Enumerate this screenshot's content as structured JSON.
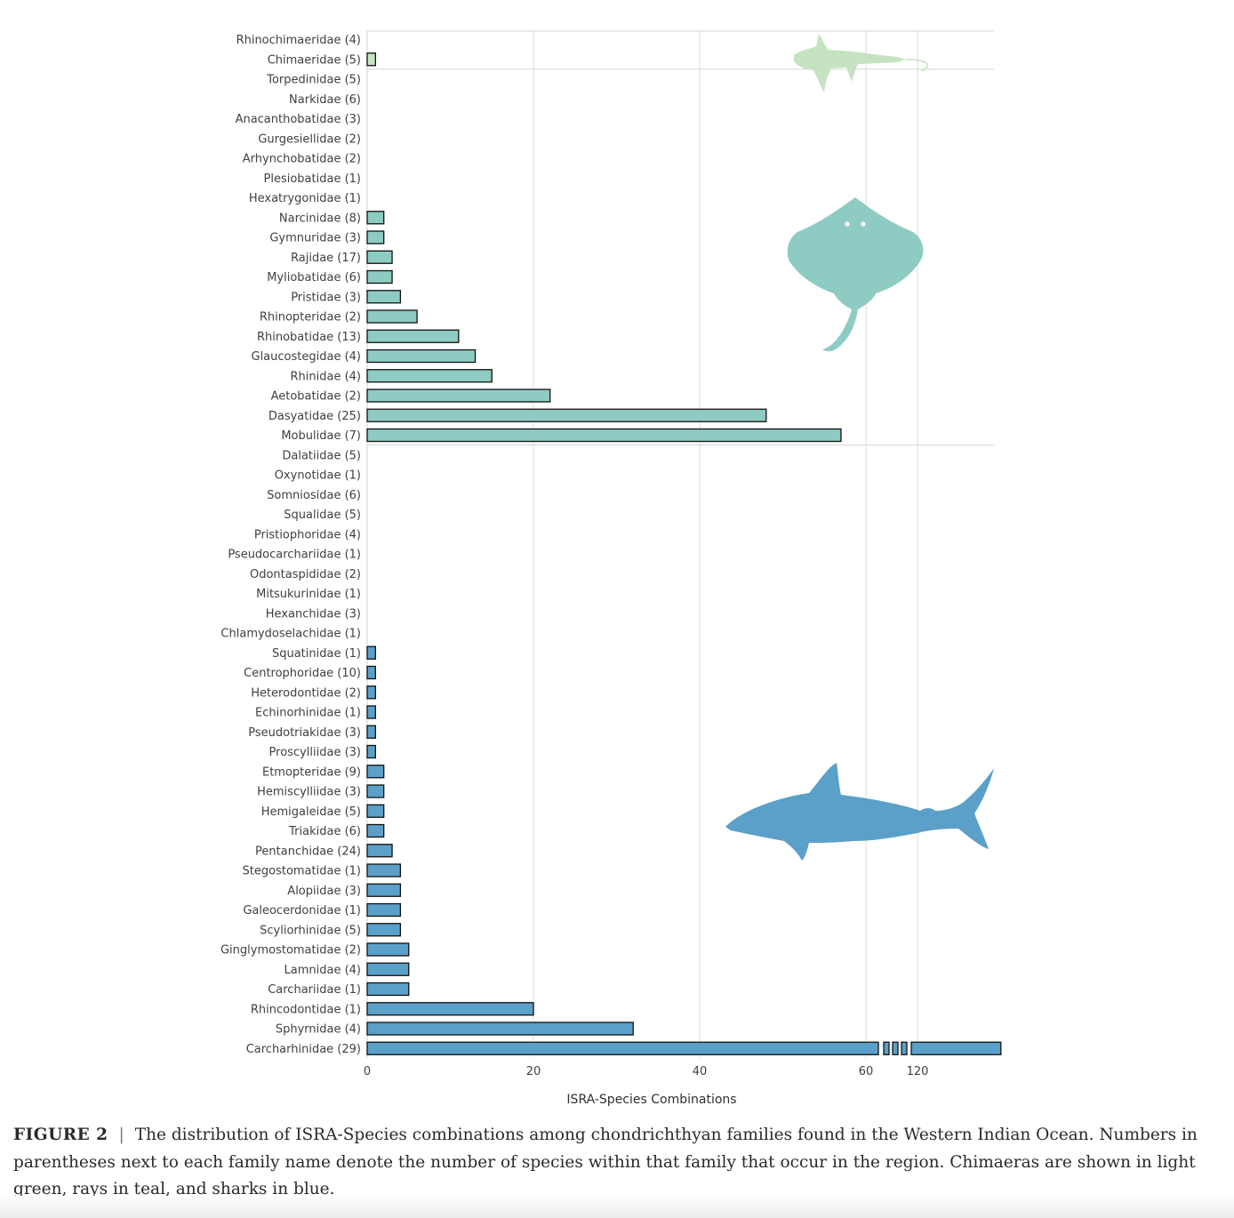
{
  "chart_data": {
    "type": "bar",
    "orientation": "horizontal",
    "xlabel": "ISRA-Species Combinations",
    "x_ticks": [
      "0",
      "20",
      "40",
      "60",
      "120"
    ],
    "x_axis_break": {
      "after": 60,
      "resume": 120
    },
    "grid": true,
    "colors": {
      "Chimaeras": "#c5e3c1",
      "Rays": "#8ecbc2",
      "Sharks": "#5ba0c8"
    },
    "categories": [
      {
        "name": "Rhinochimaeridae (4)",
        "group": "Chimaeras",
        "value": 0
      },
      {
        "name": "Chimaeridae (5)",
        "group": "Chimaeras",
        "value": 1
      },
      {
        "name": "Torpedinidae (5)",
        "group": "Rays",
        "value": 0
      },
      {
        "name": "Narkidae (6)",
        "group": "Rays",
        "value": 0
      },
      {
        "name": "Anacanthobatidae (3)",
        "group": "Rays",
        "value": 0
      },
      {
        "name": "Gurgesiellidae (2)",
        "group": "Rays",
        "value": 0
      },
      {
        "name": "Arhynchobatidae (2)",
        "group": "Rays",
        "value": 0
      },
      {
        "name": "Plesiobatidae (1)",
        "group": "Rays",
        "value": 0
      },
      {
        "name": "Hexatrygonidae (1)",
        "group": "Rays",
        "value": 0
      },
      {
        "name": "Narcinidae (8)",
        "group": "Rays",
        "value": 2
      },
      {
        "name": "Gymnuridae (3)",
        "group": "Rays",
        "value": 2
      },
      {
        "name": "Rajidae (17)",
        "group": "Rays",
        "value": 3
      },
      {
        "name": "Myliobatidae (6)",
        "group": "Rays",
        "value": 3
      },
      {
        "name": "Pristidae (3)",
        "group": "Rays",
        "value": 4
      },
      {
        "name": "Rhinopteridae (2)",
        "group": "Rays",
        "value": 6
      },
      {
        "name": "Rhinobatidae (13)",
        "group": "Rays",
        "value": 11
      },
      {
        "name": "Glaucostegidae (4)",
        "group": "Rays",
        "value": 13
      },
      {
        "name": "Rhinidae (4)",
        "group": "Rays",
        "value": 15
      },
      {
        "name": "Aetobatidae (2)",
        "group": "Rays",
        "value": 22
      },
      {
        "name": "Dasyatidae (25)",
        "group": "Rays",
        "value": 48
      },
      {
        "name": "Mobulidae (7)",
        "group": "Rays",
        "value": 57
      },
      {
        "name": "Dalatiidae (5)",
        "group": "Sharks",
        "value": 0
      },
      {
        "name": "Oxynotidae (1)",
        "group": "Sharks",
        "value": 0
      },
      {
        "name": "Somniosidae (6)",
        "group": "Sharks",
        "value": 0
      },
      {
        "name": "Squalidae (5)",
        "group": "Sharks",
        "value": 0
      },
      {
        "name": "Pristiophoridae (4)",
        "group": "Sharks",
        "value": 0
      },
      {
        "name": "Pseudocarchariidae (1)",
        "group": "Sharks",
        "value": 0
      },
      {
        "name": "Odontaspididae (2)",
        "group": "Sharks",
        "value": 0
      },
      {
        "name": "Mitsukurinidae (1)",
        "group": "Sharks",
        "value": 0
      },
      {
        "name": "Hexanchidae (3)",
        "group": "Sharks",
        "value": 0
      },
      {
        "name": "Chlamydoselachidae (1)",
        "group": "Sharks",
        "value": 0
      },
      {
        "name": "Squatinidae (1)",
        "group": "Sharks",
        "value": 1
      },
      {
        "name": "Centrophoridae (10)",
        "group": "Sharks",
        "value": 1
      },
      {
        "name": "Heterodontidae (2)",
        "group": "Sharks",
        "value": 1
      },
      {
        "name": "Echinorhinidae (1)",
        "group": "Sharks",
        "value": 1
      },
      {
        "name": "Pseudotriakidae (3)",
        "group": "Sharks",
        "value": 1
      },
      {
        "name": "Proscylliidae (3)",
        "group": "Sharks",
        "value": 1
      },
      {
        "name": "Etmopteridae (9)",
        "group": "Sharks",
        "value": 2
      },
      {
        "name": "Hemiscylliidae (3)",
        "group": "Sharks",
        "value": 2
      },
      {
        "name": "Hemigaleidae (5)",
        "group": "Sharks",
        "value": 2
      },
      {
        "name": "Triakidae (6)",
        "group": "Sharks",
        "value": 2
      },
      {
        "name": "Pentanchidae (24)",
        "group": "Sharks",
        "value": 3
      },
      {
        "name": "Stegostomatidae (1)",
        "group": "Sharks",
        "value": 4
      },
      {
        "name": "Alopiidae (3)",
        "group": "Sharks",
        "value": 4
      },
      {
        "name": "Galeocerdonidae (1)",
        "group": "Sharks",
        "value": 4
      },
      {
        "name": "Scyliorhinidae (5)",
        "group": "Sharks",
        "value": 4
      },
      {
        "name": "Ginglymostomatidae (2)",
        "group": "Sharks",
        "value": 5
      },
      {
        "name": "Lamnidae (4)",
        "group": "Sharks",
        "value": 5
      },
      {
        "name": "Carchariidae (1)",
        "group": "Sharks",
        "value": 5
      },
      {
        "name": "Rhincodontidae (1)",
        "group": "Sharks",
        "value": 20
      },
      {
        "name": "Sphyrnidae (4)",
        "group": "Sharks",
        "value": 32
      },
      {
        "name": "Carcharhinidae (29)",
        "group": "Sharks",
        "value": 132
      }
    ]
  },
  "caption": {
    "label": "FIGURE 2",
    "separator": "|",
    "text": "The distribution of ISRA-Species combinations among chondrichthyan families found in the Western Indian Ocean. Numbers in parentheses next to each family name denote the number of species within that family that occur in the region. Chimaeras are shown in light green, rays in teal, and sharks in blue."
  }
}
